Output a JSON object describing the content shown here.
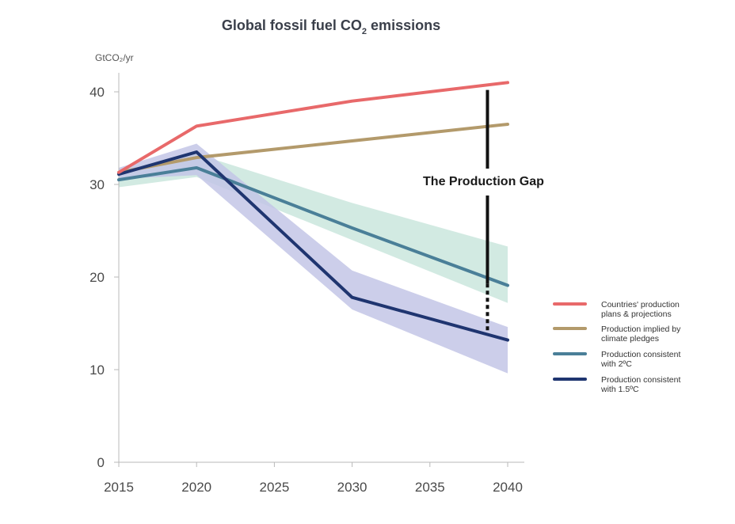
{
  "chart_data": {
    "type": "line",
    "title": "Global fossil fuel CO",
    "title_subscript": "2",
    "title_suffix": " emissions",
    "ylabel": "GtCO₂/yr",
    "xlabel": "",
    "x_ticks": [
      "2015",
      "2020",
      "2025",
      "2030",
      "2035",
      "2040"
    ],
    "y_ticks": [
      "0",
      "10",
      "20",
      "30",
      "40"
    ],
    "xlim": [
      2015,
      2040
    ],
    "ylim": [
      0,
      42
    ],
    "x": [
      2015,
      2020,
      2030,
      2040
    ],
    "series": [
      {
        "name": "Countries' production plans & projections",
        "legend_lines": [
          "Countries' production",
          "plans & projections"
        ],
        "color": "#e8696a",
        "values": [
          31.3,
          36.3,
          39.0,
          41.0
        ]
      },
      {
        "name": "Production implied by climate pledges",
        "legend_lines": [
          "Production implied by",
          "climate pledges"
        ],
        "color": "#b39a6b",
        "values": [
          31.3,
          32.9,
          34.7,
          36.5
        ]
      },
      {
        "name": "Production consistent with 2°C",
        "legend_lines": [
          "Production consistent",
          "with 2ºC"
        ],
        "color": "#4a7f98",
        "values": [
          30.5,
          31.8,
          25.3,
          19.1
        ],
        "band_low": [
          29.7,
          30.8,
          24.0,
          17.2
        ],
        "band_high": [
          31.6,
          33.3,
          28.0,
          23.3
        ],
        "band_color": "#cde8df"
      },
      {
        "name": "Production consistent with 1.5°C",
        "legend_lines": [
          "Production consistent",
          "with 1.5ºC"
        ],
        "color": "#1f3570",
        "values": [
          31.1,
          33.5,
          17.8,
          13.2
        ],
        "band_low": [
          30.6,
          31.0,
          16.5,
          9.6
        ],
        "band_high": [
          31.8,
          34.4,
          20.7,
          14.6
        ],
        "band_color": "#c3c6e6"
      }
    ],
    "annotation": {
      "text": "The Production Gap",
      "x": 2038.7,
      "y_top": 40.2,
      "y_solid_end": 19.3,
      "y_bottom": 14.2
    },
    "legend_position": "right",
    "grid": false
  }
}
